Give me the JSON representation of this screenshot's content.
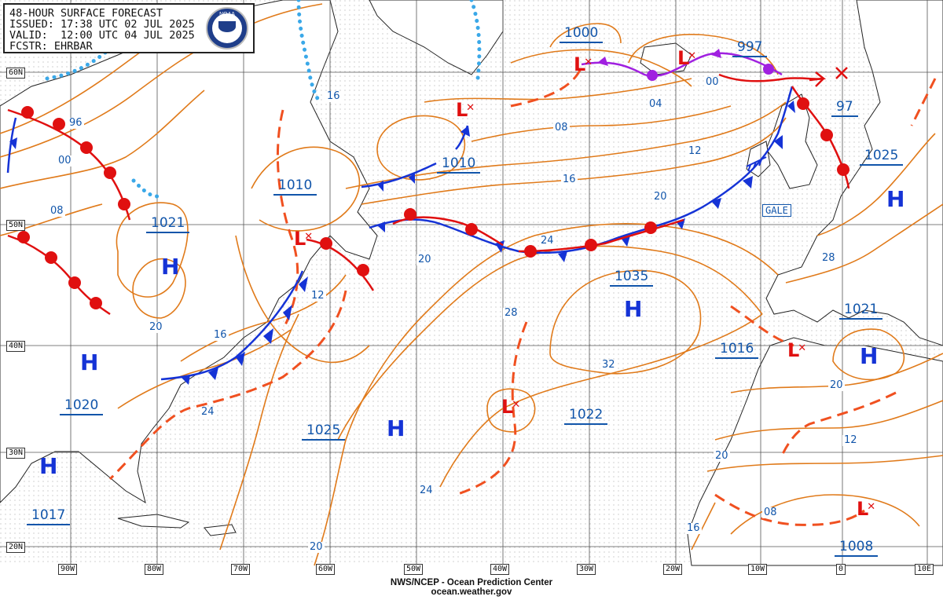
{
  "header": {
    "title": "48-HOUR SURFACE FORECAST",
    "issued": "ISSUED: 17:38 UTC 02 JUL 2025",
    "valid": "VALID:  12:00 UTC 04 JUL 2025",
    "forecaster": "FCSTR: EHRBAR",
    "logo_text": "NOAA"
  },
  "credit": {
    "line1": "NWS/NCEP - Ocean Prediction Center",
    "line2": "ocean.weather.gov"
  },
  "latitude_labels": [
    "60N",
    "50N",
    "40N",
    "30N",
    "20N"
  ],
  "longitude_labels": [
    "90W",
    "80W",
    "70W",
    "60W",
    "50W",
    "40W",
    "30W",
    "20W",
    "10W",
    "0",
    "10E"
  ],
  "pressure_centers": {
    "high": [
      {
        "label": "H",
        "value": "1021"
      },
      {
        "label": "H",
        "value": "1020"
      },
      {
        "label": "H",
        "value": "1017"
      },
      {
        "label": "H",
        "value": "1025"
      },
      {
        "label": "H",
        "value": "1035"
      },
      {
        "label": "H",
        "value": "1025"
      },
      {
        "label": "H",
        "value": "1021"
      }
    ],
    "low": [
      {
        "label": "L",
        "value": "1000"
      },
      {
        "label": "L",
        "value": "997"
      },
      {
        "label": "L",
        "value": "1010"
      },
      {
        "label": "L",
        "value": "1010"
      },
      {
        "label": "L",
        "value": "1016"
      },
      {
        "label": "L",
        "value": "1022"
      },
      {
        "label": "L",
        "value": "1008"
      }
    ]
  },
  "isobar_labels": [
    "96",
    "00",
    "08",
    "12",
    "16",
    "20",
    "24",
    "28",
    "32",
    "04",
    "08",
    "12",
    "16",
    "20",
    "24",
    "28",
    "97",
    "00",
    "20",
    "12",
    "08",
    "16",
    "20",
    "16",
    "20",
    "24"
  ],
  "warning": "GALE",
  "colors": {
    "isobar": "#e07a1a",
    "warm_front": "#e01010",
    "cold_front": "#1533d6",
    "occluded_front": "#a020e0",
    "trough": "#f05020",
    "ice_edge": "#3aa8e8",
    "land": "#ffffff",
    "grid": "#555555",
    "labels": "#1155aa"
  }
}
